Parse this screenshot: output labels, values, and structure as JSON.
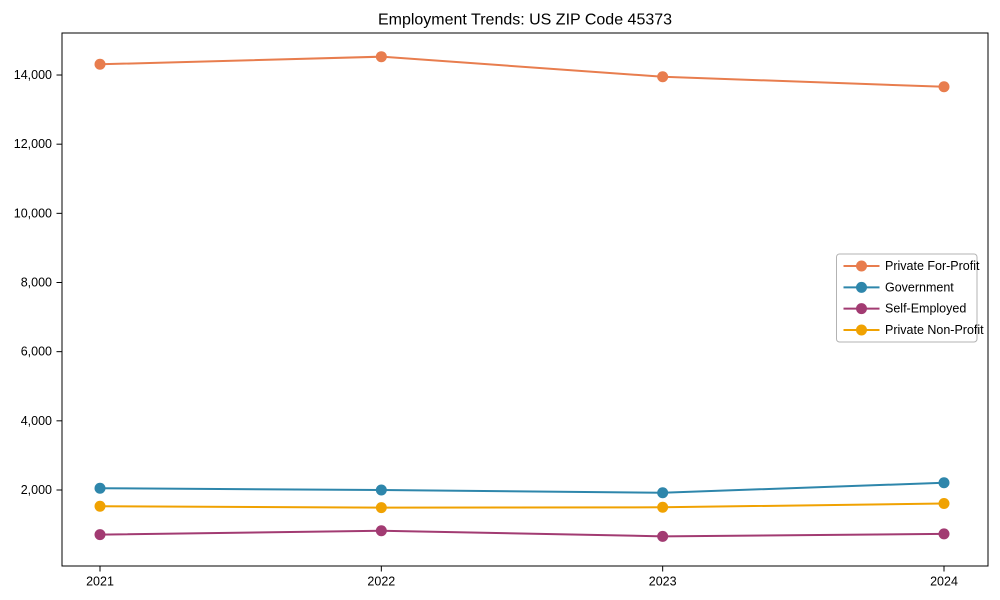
{
  "chart_data": {
    "type": "line",
    "title": "Employment Trends: US ZIP Code 45373",
    "categories": [
      "2021",
      "2022",
      "2023",
      "2024"
    ],
    "series": [
      {
        "name": "Private For-Profit",
        "color": "#e87d4e",
        "values": [
          14310,
          14530,
          13950,
          13660
        ]
      },
      {
        "name": "Government",
        "color": "#2e86ab",
        "values": [
          2050,
          2000,
          1920,
          2210
        ]
      },
      {
        "name": "Self-Employed",
        "color": "#a23b72",
        "values": [
          710,
          820,
          660,
          730
        ]
      },
      {
        "name": "Private Non-Profit",
        "color": "#f0a202",
        "values": [
          1530,
          1490,
          1500,
          1610
        ]
      }
    ],
    "xlabel": "",
    "ylabel": "",
    "ylim": [
      -198,
      15215
    ],
    "yticks": [
      2000,
      4000,
      6000,
      8000,
      10000,
      12000,
      14000
    ],
    "ytick_labels": [
      "2,000",
      "4,000",
      "6,000",
      "8,000",
      "10,000",
      "12,000",
      "14,000"
    ],
    "legend_position": "center right",
    "grid": false,
    "marker": "circle",
    "line_width": 2,
    "marker_radius": 5.5,
    "axis_color": "#000000",
    "text_color": "#000000",
    "legend_border_color": "#b3b3b3",
    "background": "#ffffff"
  }
}
